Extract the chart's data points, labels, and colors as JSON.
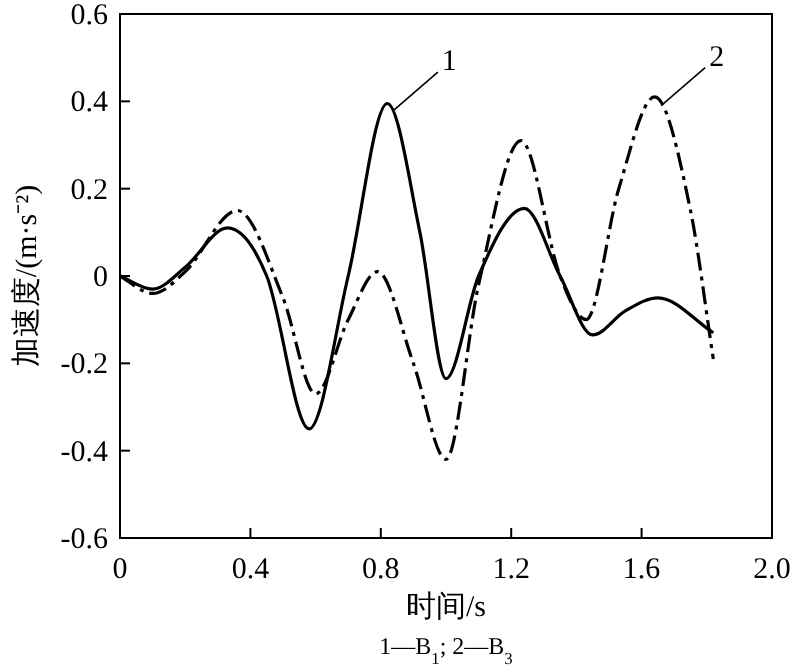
{
  "chart_data": {
    "type": "line",
    "xlabel": "时间/s",
    "ylabel": "加速度/(m·s⁻²)",
    "xlim": [
      0,
      2
    ],
    "ylim": [
      -0.6,
      0.6
    ],
    "xticks": [
      0,
      0.4,
      0.8,
      1.2,
      1.6,
      {
        "value": 2,
        "label": "2.0"
      }
    ],
    "yticks": [
      -0.6,
      -0.4,
      -0.2,
      0,
      0.2,
      0.4,
      0.6
    ],
    "series": [
      {
        "color": "#000000",
        "line_style": "solid",
        "x": [
          0,
          0.1,
          0.2,
          0.33,
          0.45,
          0.58,
          0.7,
          0.82,
          0.92,
          1.0,
          1.1,
          1.24,
          1.35,
          1.45,
          1.55,
          1.65,
          1.82
        ],
        "values": [
          0,
          -0.03,
          0.02,
          0.11,
          0,
          -0.35,
          0,
          0.395,
          0.1,
          -0.235,
          0,
          0.155,
          0,
          -0.135,
          -0.08,
          -0.05,
          -0.13
        ]
      },
      {
        "color": "#000000",
        "line_style": "dashed",
        "x": [
          0,
          0.1,
          0.2,
          0.36,
          0.5,
          0.6,
          0.7,
          0.79,
          0.9,
          1.0,
          1.1,
          1.23,
          1.35,
          1.43,
          1.53,
          1.64,
          1.75,
          1.82
        ],
        "values": [
          0,
          -0.04,
          0.01,
          0.15,
          -0.05,
          -0.27,
          -0.1,
          0.01,
          -0.2,
          -0.42,
          -0.02,
          0.31,
          0,
          -0.1,
          0.2,
          0.41,
          0.15,
          -0.19
        ]
      }
    ],
    "annotations": [
      {
        "text": "1",
        "x": 0.84,
        "y": 0.38
      },
      {
        "text": "2",
        "x": 1.66,
        "y": 0.39
      },
      "1—B$_{1}$; 2—B$_{3}$"
    ],
    "grid": false
  }
}
